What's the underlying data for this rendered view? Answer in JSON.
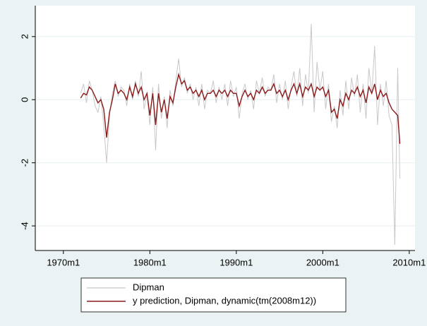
{
  "chart_data": {
    "type": "line",
    "x": [
      144,
      148,
      152,
      156,
      160,
      164,
      168,
      172,
      176,
      180,
      184,
      188,
      192,
      196,
      200,
      204,
      208,
      212,
      216,
      220,
      224,
      228,
      232,
      236,
      240,
      244,
      248,
      252,
      256,
      260,
      264,
      268,
      272,
      276,
      280,
      284,
      288,
      292,
      296,
      300,
      304,
      308,
      312,
      316,
      320,
      324,
      328,
      332,
      336,
      340,
      344,
      348,
      352,
      356,
      360,
      364,
      368,
      372,
      376,
      380,
      384,
      388,
      392,
      396,
      400,
      404,
      408,
      412,
      416,
      420,
      424,
      428,
      432,
      436,
      440,
      444,
      448,
      452,
      456,
      460,
      464,
      468,
      472,
      476,
      480,
      484,
      488,
      492,
      496,
      500,
      504,
      508,
      512,
      516,
      520,
      524,
      528,
      532,
      536,
      540,
      544,
      548,
      552,
      556,
      560,
      564,
      568,
      572,
      576,
      580,
      584,
      587
    ],
    "series": [
      {
        "name": "Dipman",
        "color": "#c8c8c8",
        "values": [
          0.2,
          0.5,
          -0.1,
          0.6,
          0.3,
          -0.2,
          -0.4,
          0.1,
          -0.8,
          -2.0,
          -0.5,
          0.2,
          0.6,
          0.1,
          0.4,
          0.3,
          -0.2,
          0.5,
          0.0,
          0.6,
          0.1,
          0.9,
          -0.3,
          0.2,
          -0.8,
          0.4,
          -1.6,
          0.5,
          -0.6,
          0.1,
          -0.9,
          0.3,
          -0.2,
          0.6,
          1.3,
          0.4,
          0.7,
          0.2,
          0.5,
          0.0,
          0.4,
          -0.2,
          0.5,
          -0.3,
          0.3,
          0.2,
          0.6,
          -0.1,
          0.4,
          0.0,
          0.5,
          -0.2,
          0.6,
          0.1,
          0.4,
          -0.6,
          0.2,
          0.5,
          0.0,
          0.3,
          -0.3,
          0.6,
          0.2,
          0.7,
          0.1,
          0.4,
          0.3,
          0.8,
          -0.1,
          0.5,
          0.0,
          0.6,
          -0.3,
          0.4,
          0.9,
          0.1,
          1.0,
          -0.2,
          0.8,
          0.2,
          2.4,
          -0.4,
          1.2,
          0.3,
          0.9,
          -0.3,
          0.5,
          -0.7,
          -0.2,
          -0.9,
          0.3,
          -0.5,
          0.6,
          -0.3,
          0.7,
          0.1,
          0.8,
          -0.4,
          0.5,
          -0.6,
          1.0,
          0.2,
          1.7,
          -0.8,
          0.5,
          -0.2,
          0.6,
          -0.5,
          -0.8,
          -4.6,
          1.0,
          -2.5
        ]
      },
      {
        "name": "y prediction, Dipman, dynamic(tm(2008m12))",
        "color": "#8b1a1a",
        "values": [
          0.05,
          0.2,
          0.15,
          0.4,
          0.3,
          0.1,
          -0.1,
          0.0,
          -0.3,
          -1.2,
          -0.4,
          0.0,
          0.5,
          0.2,
          0.3,
          0.2,
          0.0,
          0.4,
          0.1,
          0.5,
          0.2,
          0.4,
          0.0,
          0.2,
          -0.5,
          0.2,
          -0.8,
          0.2,
          -0.4,
          0.0,
          -0.6,
          0.1,
          -0.1,
          0.4,
          0.8,
          0.5,
          0.6,
          0.3,
          0.4,
          0.2,
          0.3,
          0.1,
          0.3,
          0.0,
          0.2,
          0.2,
          0.3,
          0.1,
          0.3,
          0.2,
          0.3,
          0.1,
          0.3,
          0.2,
          0.2,
          -0.2,
          0.1,
          0.3,
          0.1,
          0.2,
          0.0,
          0.3,
          0.2,
          0.4,
          0.2,
          0.3,
          0.3,
          0.5,
          0.2,
          0.3,
          0.1,
          0.3,
          0.0,
          0.3,
          0.5,
          0.2,
          0.5,
          0.1,
          0.4,
          0.3,
          0.5,
          0.1,
          0.4,
          0.3,
          0.4,
          0.1,
          0.3,
          -0.4,
          -0.3,
          -0.6,
          0.0,
          -0.2,
          0.2,
          0.0,
          0.3,
          0.2,
          0.4,
          0.1,
          0.3,
          -0.1,
          0.4,
          0.2,
          0.5,
          0.0,
          0.3,
          0.1,
          0.2,
          -0.1,
          -0.3,
          -0.4,
          -0.5,
          -1.4
        ]
      }
    ],
    "xlim": [
      81,
      608
    ],
    "xticks": [
      {
        "value": 120,
        "label": "1970m1"
      },
      {
        "value": 240,
        "label": "1980m1"
      },
      {
        "value": 360,
        "label": "1990m1"
      },
      {
        "value": 480,
        "label": "2000m1"
      },
      {
        "value": 600,
        "label": "2010m1"
      }
    ],
    "ylim": [
      -4.78,
      2.98
    ],
    "yticks": [
      -4,
      -2,
      0,
      2
    ],
    "grid": true
  }
}
